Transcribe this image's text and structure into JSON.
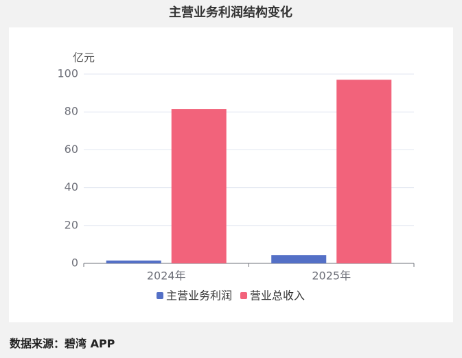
{
  "chart_data": {
    "type": "bar",
    "title": "主营业务利润结构变化",
    "y_label": "亿元",
    "categories": [
      "2024年",
      "2025年"
    ],
    "series": [
      {
        "name": "主营业务利润",
        "color": "#5470c6",
        "values": [
          1.5,
          4.3
        ]
      },
      {
        "name": "营业总收入",
        "color": "#f2637b",
        "values": [
          81.5,
          97
        ]
      }
    ],
    "ylim": [
      0,
      100
    ],
    "yticks": [
      0,
      20,
      40,
      60,
      80,
      100
    ],
    "grid": true,
    "source": "数据来源：碧湾 APP"
  }
}
